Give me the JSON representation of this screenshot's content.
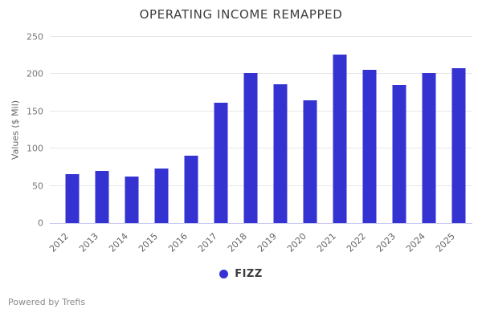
{
  "chart_data": {
    "type": "bar",
    "title": "OPERATING INCOME REMAPPED",
    "xlabel": "",
    "ylabel": "Values ($ Mil)",
    "categories": [
      "2012",
      "2013",
      "2014",
      "2015",
      "2016",
      "2017",
      "2018",
      "2019",
      "2020",
      "2021",
      "2022",
      "2023",
      "2024",
      "2025"
    ],
    "series": [
      {
        "name": "FIZZ",
        "color": "#3432d1",
        "values": [
          66,
          70,
          62,
          73,
          91,
          162,
          202,
          186,
          165,
          226,
          206,
          185,
          202,
          208
        ]
      }
    ],
    "ylim": [
      0,
      250
    ],
    "yticks": [
      0,
      50,
      100,
      150,
      200,
      250
    ],
    "grid": true,
    "legend_position": "bottom",
    "colors": {
      "bar": "#3432d1",
      "gridline": "#e7e7e7",
      "axis_line": "#c9cbf0",
      "title_text": "#3d3d3d",
      "tick_text": "#757575"
    }
  },
  "footer": {
    "text": "Powered by Trefis"
  }
}
